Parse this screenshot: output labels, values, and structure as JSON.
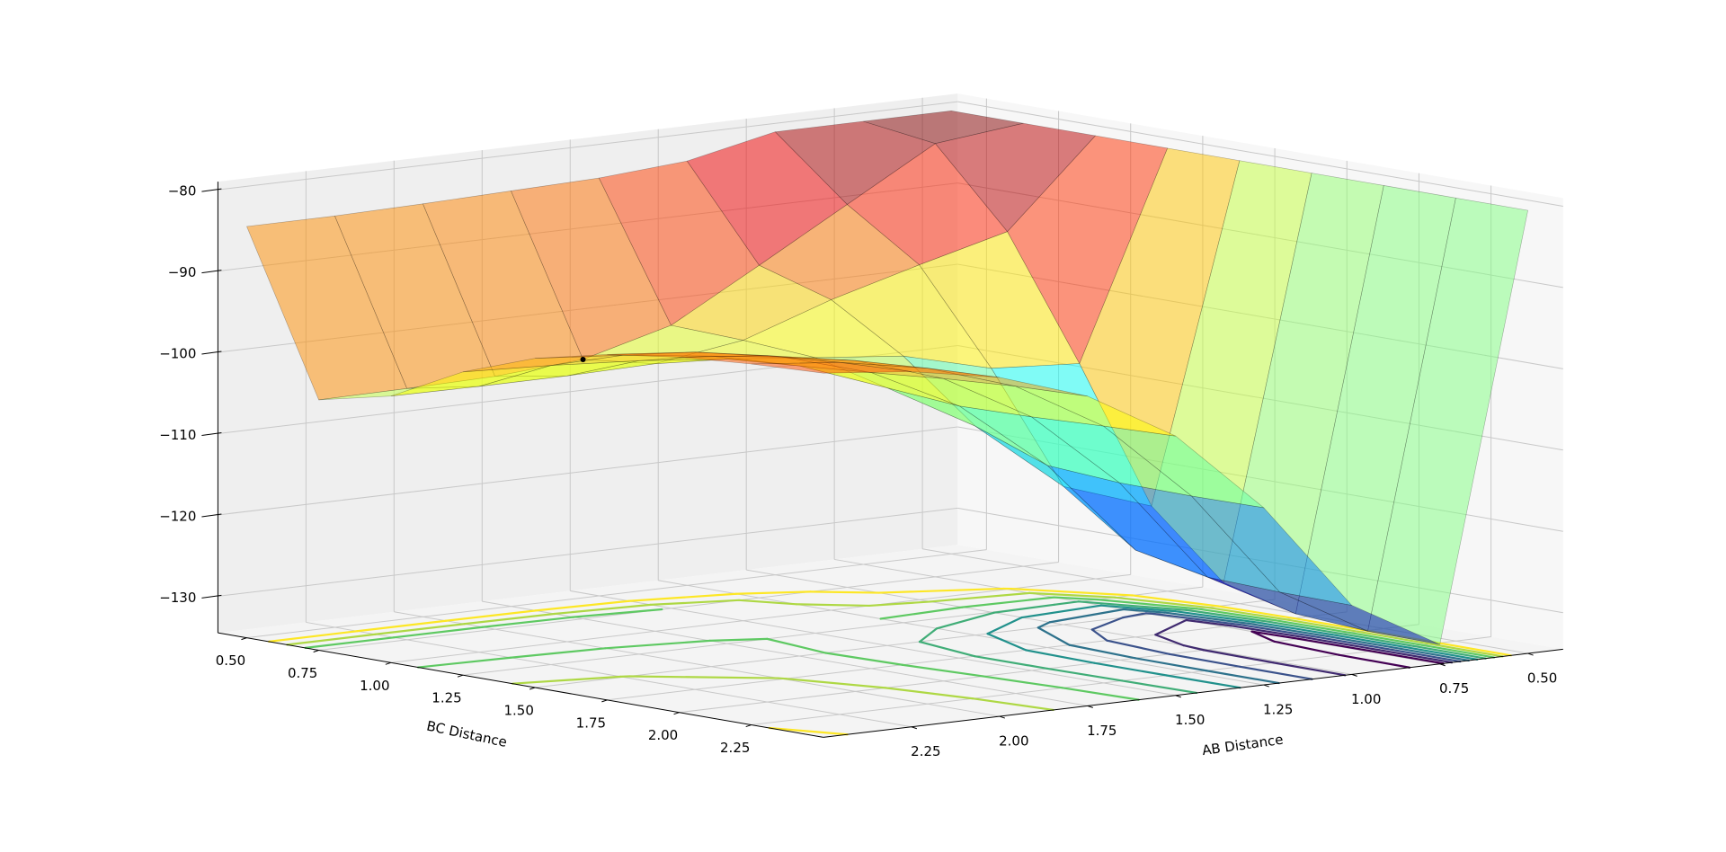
{
  "chart_data": {
    "type": "surface",
    "xlabel": "AB Distance",
    "ylabel": "BC Distance",
    "x": [
      0.5,
      0.75,
      1.0,
      1.25,
      1.5,
      1.75,
      2.0,
      2.25,
      2.5
    ],
    "y": [
      0.5,
      0.75,
      1.0,
      1.25,
      1.5,
      1.75,
      2.0,
      2.25,
      2.5
    ],
    "z": [
      [
        -80,
        -80,
        -80,
        -82.3,
        -83.1,
        -83.4,
        -83.7,
        -83.9,
        -83.9
      ],
      [
        -80,
        -81.2,
        -87.4,
        -93.6,
        -99.7,
        -102.6,
        -103.4,
        -103.6,
        -103.7
      ],
      [
        -80,
        -90.5,
        -93.3,
        -96.3,
        -100,
        -101.6,
        -101.8,
        -101.8,
        -101.7
      ],
      [
        -80,
        -105.2,
        -104.5,
        -101.7,
        -100.6,
        -99.5,
        -98.4,
        -97.7,
        -97.2
      ],
      [
        -80,
        -121.2,
        -117.5,
        -108.8,
        -102.8,
        -98.8,
        -96.3,
        -94.9,
        -94.0
      ],
      [
        -80,
        -129.1,
        -123.8,
        -112.1,
        -103.5,
        -98.1,
        -94.9,
        -93.0,
        -92.0
      ],
      [
        -80,
        -131.4,
        -125.6,
        -112.7,
        -103.3,
        -97.3,
        -93.8,
        -91.9,
        -90.8
      ],
      [
        -80,
        -132.0,
        -125.9,
        -112.8,
        -102.9,
        -96.7,
        -93.2,
        -91.2,
        -90.1
      ],
      [
        -80,
        -132.1,
        -126.0,
        -112.7,
        -102.6,
        -96.4,
        -92.8,
        -90.8,
        -89.7
      ]
    ],
    "colormap": "jet",
    "alpha": 0.5,
    "contour_levels": [
      -130,
      -125,
      -120,
      -115,
      -110,
      -105,
      -100,
      -95,
      -90
    ],
    "contour_colormap": "viridis",
    "point": {
      "x": 1.75,
      "y": 0.75,
      "z": -102.6,
      "color": "#000000"
    },
    "xlim": [
      0.4,
      2.5
    ],
    "ylim": [
      0.4,
      2.5
    ],
    "zlim": [
      -134.5,
      -79
    ],
    "xticks": [
      {
        "value": 0.5,
        "label": "0.50"
      },
      0.75,
      {
        "value": 1.0,
        "label": "1.00"
      },
      1.25,
      {
        "value": 1.5,
        "label": "1.50"
      },
      1.75,
      {
        "value": 2.0,
        "label": "2.00"
      },
      2.25
    ],
    "yticks": [
      {
        "value": 0.5,
        "label": "0.50"
      },
      0.75,
      {
        "value": 1.0,
        "label": "1.00"
      },
      1.25,
      {
        "value": 1.5,
        "label": "1.50"
      },
      1.75,
      {
        "value": 2.0,
        "label": "2.00"
      },
      2.25
    ],
    "zticks": [
      {
        "value": -130,
        "label": "−130"
      },
      {
        "value": -120,
        "label": "−120"
      },
      {
        "value": -110,
        "label": "−110"
      },
      {
        "value": -100,
        "label": "−100"
      },
      {
        "value": -90,
        "label": "−90"
      },
      {
        "value": -80,
        "label": "−80"
      }
    ],
    "grid": true
  }
}
